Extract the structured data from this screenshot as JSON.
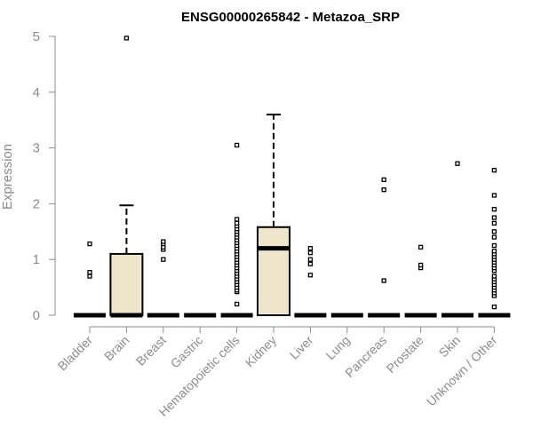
{
  "chart_data": {
    "type": "boxplot",
    "title": "ENSG00000265842 - Metazoa_SRP",
    "ylabel": "Expression",
    "xlabel": "",
    "ylim": [
      0,
      5
    ],
    "yticks": [
      0,
      1,
      2,
      3,
      4,
      5
    ],
    "box_fill": "#ede6cb",
    "categories": [
      "Bladder",
      "Brain",
      "Breast",
      "Gastric",
      "Hematopoietic cells",
      "Kidney",
      "Liver",
      "Lung",
      "Pancreas",
      "Prostate",
      "Skin",
      "Unknown / Other"
    ],
    "boxes": [
      {
        "category": "Bladder",
        "q1": 0,
        "median": 0,
        "q3": 0,
        "whisker_low": 0,
        "whisker_high": 0,
        "outliers": [
          0.7,
          0.77,
          1.28
        ]
      },
      {
        "category": "Brain",
        "q1": 0,
        "median": 0,
        "q3": 1.1,
        "whisker_low": 0,
        "whisker_high": 1.97,
        "outliers": [
          4.97
        ]
      },
      {
        "category": "Breast",
        "q1": 0,
        "median": 0,
        "q3": 0,
        "whisker_low": 0,
        "whisker_high": 0,
        "outliers": [
          1.0,
          1.18,
          1.22,
          1.28,
          1.32
        ]
      },
      {
        "category": "Gastric",
        "q1": 0,
        "median": 0,
        "q3": 0,
        "whisker_low": 0,
        "whisker_high": 0,
        "outliers": []
      },
      {
        "category": "Hematopoietic cells",
        "q1": 0,
        "median": 0,
        "q3": 0,
        "whisker_low": 0,
        "whisker_high": 0,
        "outliers": [
          0.2,
          0.42,
          0.45,
          0.5,
          0.55,
          0.6,
          0.65,
          0.7,
          0.75,
          0.8,
          0.85,
          0.9,
          0.95,
          1.0,
          1.05,
          1.1,
          1.15,
          1.2,
          1.25,
          1.3,
          1.35,
          1.4,
          1.45,
          1.5,
          1.55,
          1.6,
          1.65,
          1.72,
          3.05
        ]
      },
      {
        "category": "Kidney",
        "q1": 0,
        "median": 1.2,
        "q3": 1.58,
        "whisker_low": 0,
        "whisker_high": 3.6,
        "outliers": []
      },
      {
        "category": "Liver",
        "q1": 0,
        "median": 0,
        "q3": 0,
        "whisker_low": 0,
        "whisker_high": 0,
        "outliers": [
          0.72,
          0.92,
          1.0,
          1.12,
          1.2
        ]
      },
      {
        "category": "Lung",
        "q1": 0,
        "median": 0,
        "q3": 0,
        "whisker_low": 0,
        "whisker_high": 0,
        "outliers": []
      },
      {
        "category": "Pancreas",
        "q1": 0,
        "median": 0,
        "q3": 0,
        "whisker_low": 0,
        "whisker_high": 0,
        "outliers": [
          0.62,
          2.25,
          2.43
        ]
      },
      {
        "category": "Prostate",
        "q1": 0,
        "median": 0,
        "q3": 0,
        "whisker_low": 0,
        "whisker_high": 0,
        "outliers": [
          0.85,
          0.9,
          1.22
        ]
      },
      {
        "category": "Skin",
        "q1": 0,
        "median": 0,
        "q3": 0,
        "whisker_low": 0,
        "whisker_high": 0,
        "outliers": [
          2.72
        ]
      },
      {
        "category": "Unknown / Other",
        "q1": 0,
        "median": 0,
        "q3": 0,
        "whisker_low": 0,
        "whisker_high": 0,
        "outliers": [
          0.15,
          0.35,
          0.4,
          0.45,
          0.5,
          0.55,
          0.6,
          0.65,
          0.7,
          0.8,
          0.85,
          0.9,
          0.95,
          1.0,
          1.05,
          1.1,
          1.15,
          1.25,
          1.4,
          1.5,
          1.65,
          1.75,
          1.9,
          2.15,
          2.6
        ]
      }
    ]
  }
}
